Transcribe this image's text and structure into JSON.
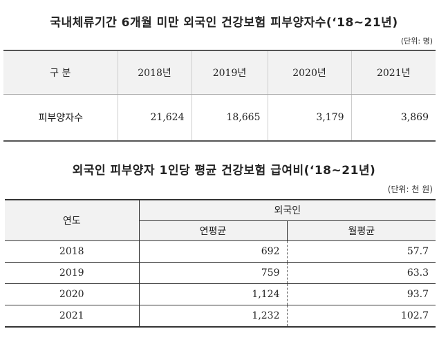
{
  "table1": {
    "title": "국내체류기간 6개월 미만 외국인 건강보험 피부양자수(‘18~21년)",
    "unit": "(단위: 명)",
    "header": {
      "label": "구  분",
      "years": [
        "2018년",
        "2019년",
        "2020년",
        "2021년"
      ]
    },
    "row": {
      "label": "피부양자수",
      "values": [
        "21,624",
        "18,665",
        "3,179",
        "3,869"
      ]
    }
  },
  "table2": {
    "title": "외국인 피부양자 1인당 평균 건강보험 급여비(‘18~21년)",
    "unit": "(단위: 천 원)",
    "header": {
      "year": "연도",
      "group": "외국인",
      "annual": "연평균",
      "monthly": "월평균"
    },
    "rows": [
      {
        "year": "2018",
        "annual": "692",
        "monthly": "57.7"
      },
      {
        "year": "2019",
        "annual": "759",
        "monthly": "63.3"
      },
      {
        "year": "2020",
        "annual": "1,124",
        "monthly": "93.7"
      },
      {
        "year": "2021",
        "annual": "1,232",
        "monthly": "102.7"
      }
    ]
  }
}
